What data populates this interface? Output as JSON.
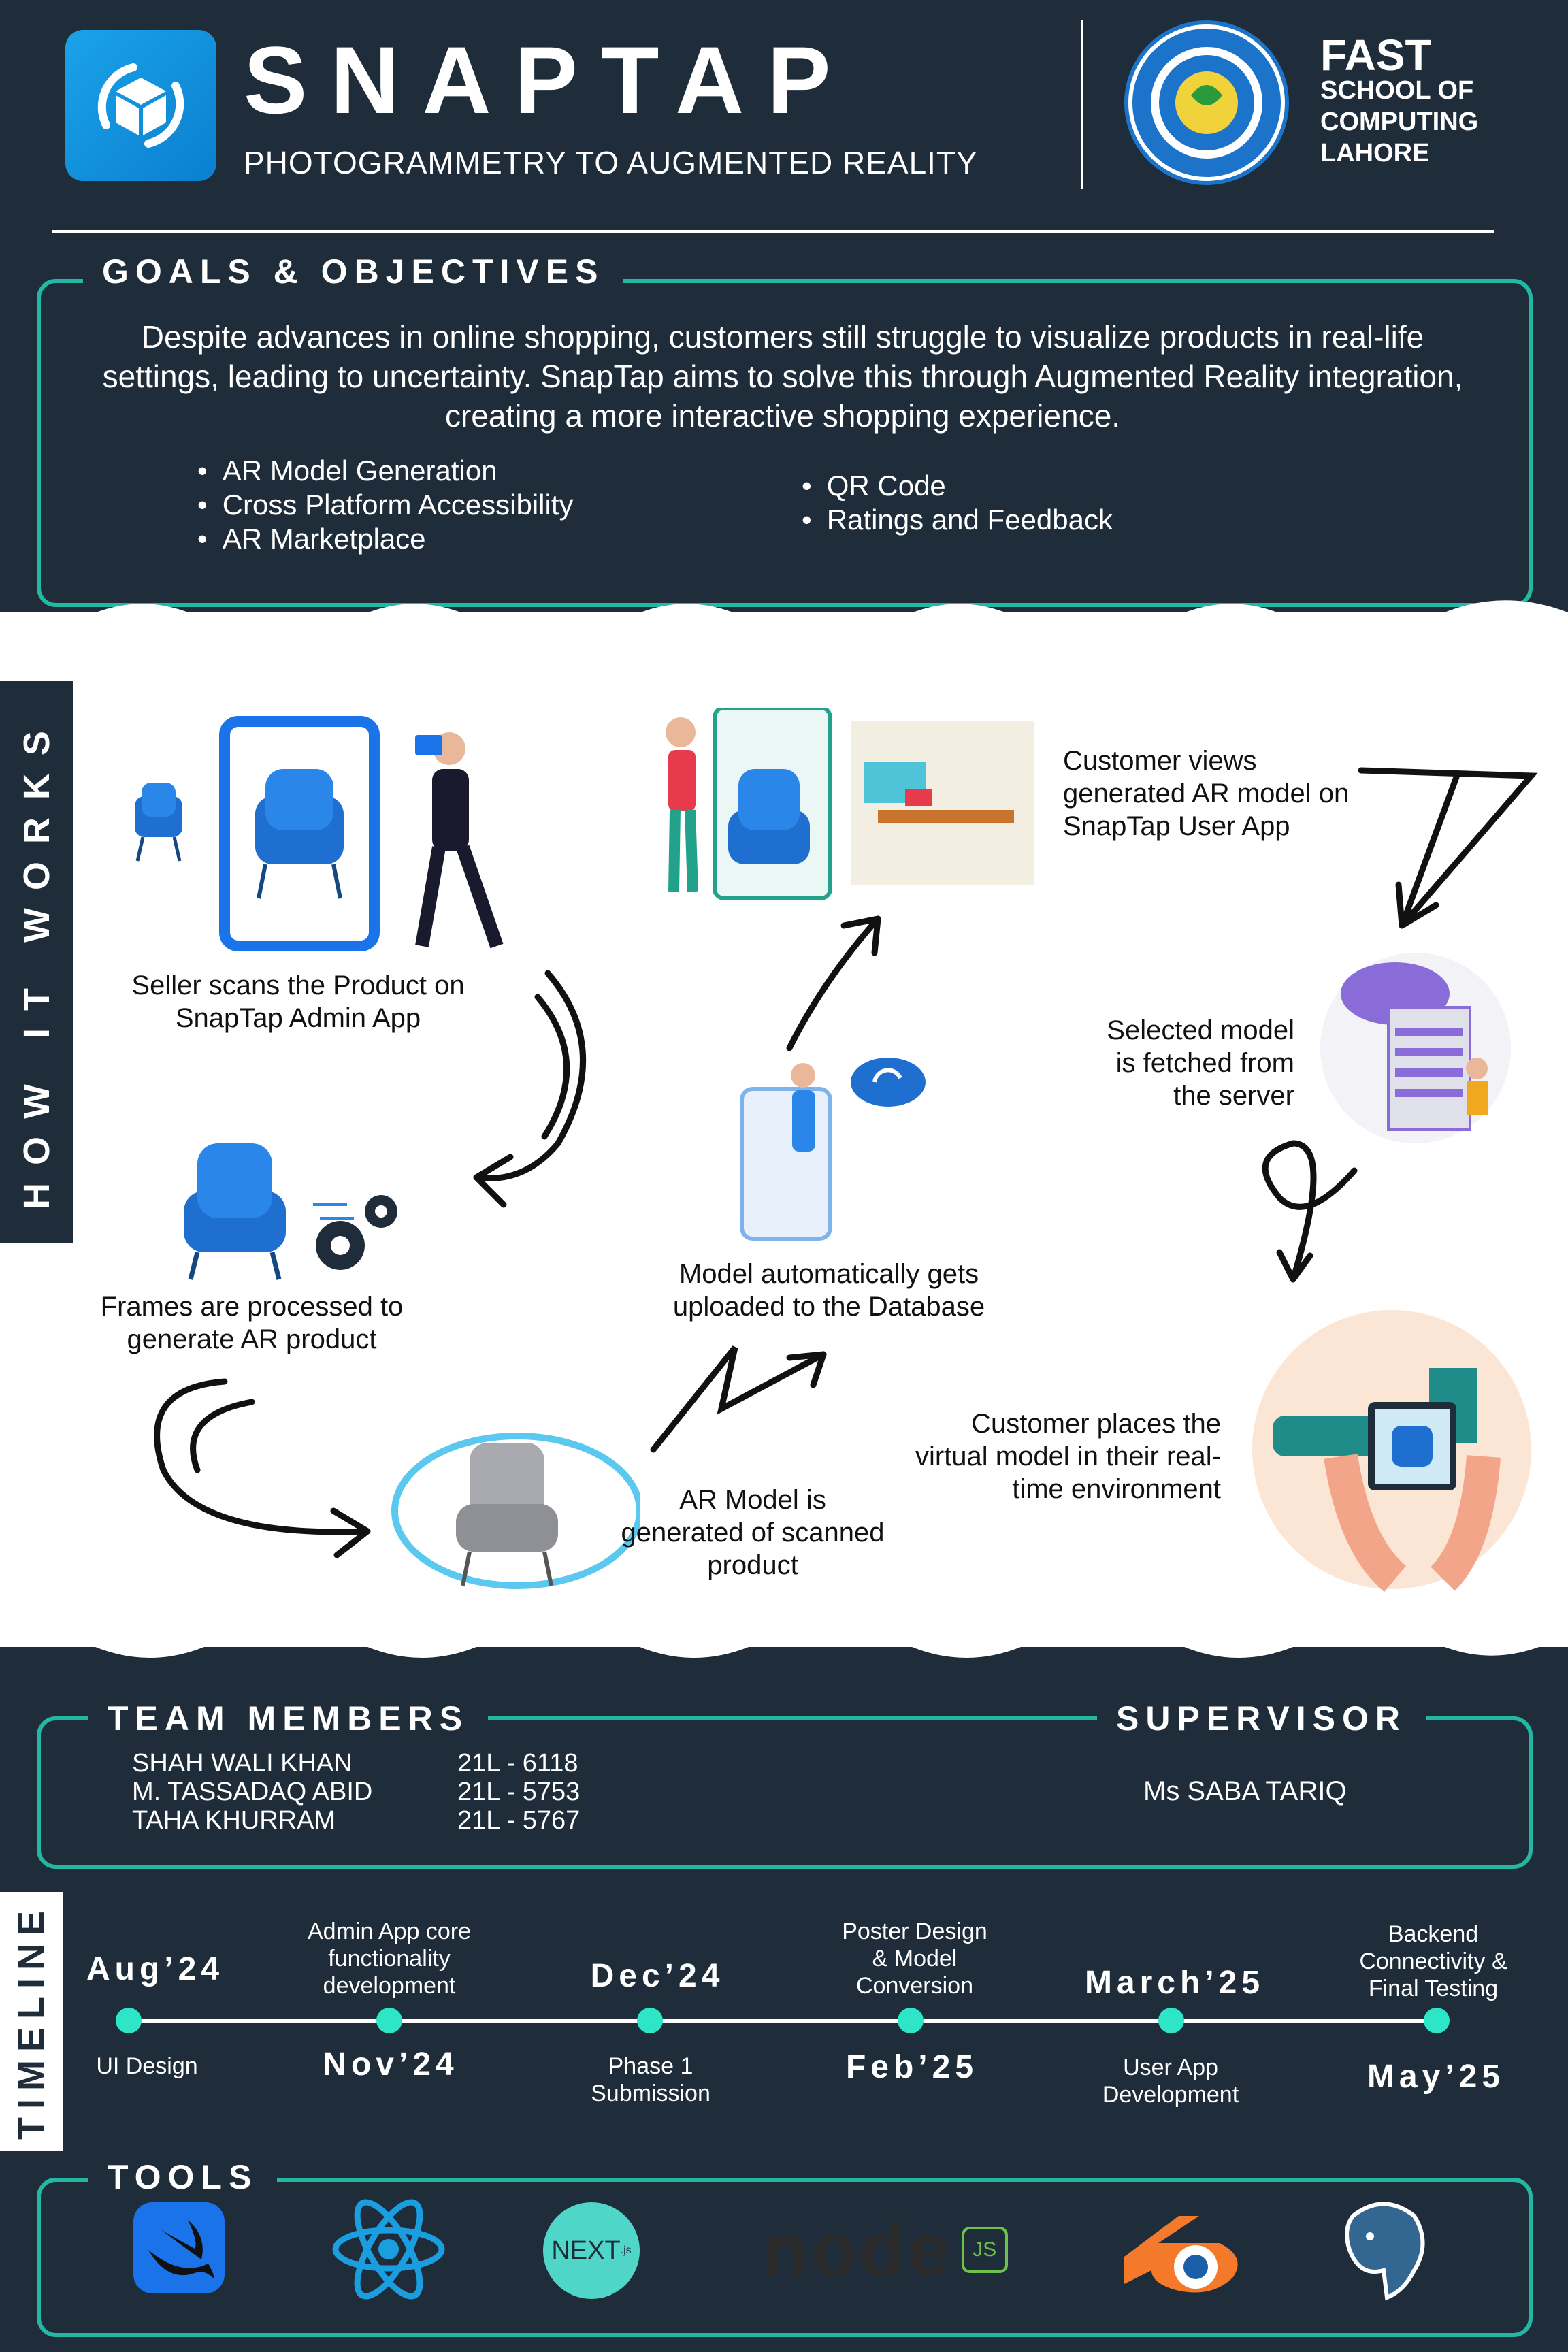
{
  "header": {
    "title": "SNAPTAP",
    "subtitle": "PHOTOGRAMMETRY TO AUGMENTED REALITY",
    "institution": {
      "name": "FAST",
      "lines": [
        "SCHOOL OF",
        "COMPUTING",
        "LAHORE"
      ]
    }
  },
  "goals": {
    "heading": "GOALS & OBJECTIVES",
    "paragraph": "Despite advances in online shopping, customers still struggle to visualize products in real-life settings, leading to uncertainty. SnapTap aims to solve this through Augmented Reality integration, creating a more interactive shopping experience.",
    "bullets_left": [
      "AR Model Generation",
      "Cross Platform Accessibility",
      "AR Marketplace"
    ],
    "bullets_right": [
      "QR Code",
      "Ratings and Feedback"
    ]
  },
  "how": {
    "heading": "HOW IT WORKS",
    "steps": {
      "scan": "Seller scans the Product on SnapTap Admin App",
      "process": "Frames are processed to generate AR product",
      "generate": "AR Model is generated of scanned product",
      "upload": "Model automatically gets uploaded to the Database",
      "view": "Customer views generated AR model on SnapTap User App",
      "fetch": "Selected model is fetched from the server",
      "place": "Customer places the virtual model in their real-time environment"
    }
  },
  "team": {
    "heading": "TEAM MEMBERS",
    "members": [
      {
        "name": "SHAH WALI KHAN",
        "id": "21L - 6118"
      },
      {
        "name": "M. TASSADAQ ABID",
        "id": "21L - 5753"
      },
      {
        "name": "TAHA KHURRAM",
        "id": "21L - 5767"
      }
    ],
    "supervisor_heading": "SUPERVISOR",
    "supervisor": "Ms SABA TARIQ"
  },
  "timeline": {
    "heading": "TIMELINE",
    "milestones": [
      {
        "date": "Aug’24",
        "label": "UI Design"
      },
      {
        "date": "Nov’24",
        "label": "Admin App core functionality development"
      },
      {
        "date": "Dec’24",
        "label": "Phase 1 Submission"
      },
      {
        "date": "Feb’25",
        "label": "Poster Design & Model Conversion"
      },
      {
        "date": "March’25",
        "label": "User App Development"
      },
      {
        "date": "May’25",
        "label": "Backend Connectivity & Final Testing"
      }
    ]
  },
  "tools": {
    "heading": "TOOLS",
    "icons": [
      "swift-icon",
      "react-icon",
      "nextjs-icon",
      "nodejs-icon",
      "blender-icon",
      "postgresql-icon"
    ],
    "labels": {
      "nextjs": "NEXT",
      "nextjs_sub": ".js",
      "nodejs": "node",
      "nodejs_badge": "JS"
    }
  },
  "colors": {
    "background": "#1f2d3a",
    "accent": "#23b7a4",
    "dot": "#2ee6c7",
    "chair": "#1e6fd0"
  }
}
